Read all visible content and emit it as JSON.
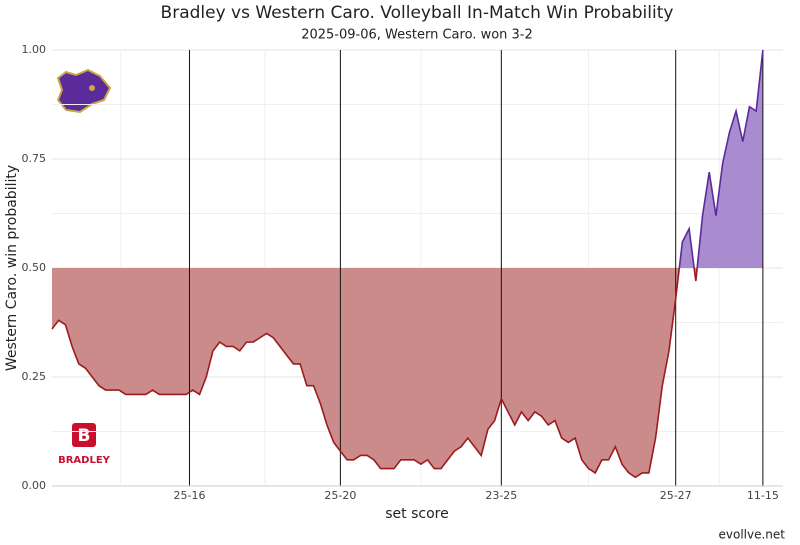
{
  "chart_data": {
    "type": "winprob",
    "title": "Bradley vs Western Caro. Volleyball In-Match Win Probability",
    "subtitle": "2025-09-06, Western Caro. won 3-2",
    "x_label": "set score",
    "y_label": "Western Caro. win probability",
    "caption": "evollve.net",
    "logo_text": "BRADLEY",
    "logo_letter": "B",
    "threshold": 0.5,
    "color_above": "#5b2a9b",
    "fill_above": "#a98bd0",
    "color_below": "#9b1b1e",
    "fill_below": "#cc8b8b",
    "x": [
      0,
      2,
      4,
      6,
      8,
      10,
      12,
      14,
      16,
      18,
      20,
      22,
      24,
      26,
      28,
      30,
      32,
      34,
      36,
      38,
      40,
      42,
      44,
      46,
      48,
      50,
      52,
      54,
      56,
      58,
      60,
      62,
      64,
      66,
      68,
      70,
      72,
      74,
      76,
      78,
      80,
      82,
      84,
      86,
      88,
      90,
      92,
      94,
      96,
      98,
      100,
      102,
      104,
      106,
      108,
      110,
      112,
      114,
      116,
      118,
      120,
      122,
      124,
      126,
      128,
      130,
      132,
      134,
      136,
      138,
      140,
      142,
      144,
      146,
      148,
      150,
      152,
      154,
      156,
      158,
      160,
      162,
      164,
      166,
      168,
      170,
      172,
      174,
      176,
      178,
      180,
      182,
      184,
      186,
      188,
      190,
      192,
      194,
      196,
      198,
      200,
      202,
      204,
      206,
      208,
      210,
      212
    ],
    "values": [
      0.36,
      0.38,
      0.37,
      0.32,
      0.28,
      0.27,
      0.25,
      0.23,
      0.22,
      0.22,
      0.22,
      0.21,
      0.21,
      0.21,
      0.21,
      0.22,
      0.21,
      0.21,
      0.21,
      0.21,
      0.21,
      0.22,
      0.21,
      0.25,
      0.31,
      0.33,
      0.32,
      0.32,
      0.31,
      0.33,
      0.33,
      0.34,
      0.35,
      0.34,
      0.32,
      0.3,
      0.28,
      0.28,
      0.23,
      0.23,
      0.19,
      0.14,
      0.1,
      0.08,
      0.06,
      0.06,
      0.07,
      0.07,
      0.06,
      0.04,
      0.04,
      0.04,
      0.06,
      0.06,
      0.06,
      0.05,
      0.06,
      0.04,
      0.04,
      0.06,
      0.08,
      0.09,
      0.11,
      0.09,
      0.07,
      0.13,
      0.15,
      0.2,
      0.17,
      0.14,
      0.17,
      0.15,
      0.17,
      0.16,
      0.14,
      0.15,
      0.11,
      0.1,
      0.11,
      0.06,
      0.04,
      0.03,
      0.06,
      0.06,
      0.09,
      0.05,
      0.03,
      0.02,
      0.03,
      0.03,
      0.11,
      0.23,
      0.31,
      0.43,
      0.56,
      0.59,
      0.47,
      0.62,
      0.72,
      0.62,
      0.74,
      0.81,
      0.86,
      0.79,
      0.87,
      0.86,
      1.0
    ],
    "xlim": [
      0,
      218
    ],
    "xticks": [
      {
        "value": 41,
        "label": "25-16"
      },
      {
        "value": 86,
        "label": "25-20"
      },
      {
        "value": 134,
        "label": "23-25"
      },
      {
        "value": 186,
        "label": "25-27"
      },
      {
        "value": 212,
        "label": "11-15"
      }
    ],
    "ylim": [
      0,
      1
    ],
    "yticks": [
      {
        "value": 0,
        "label": "0.00"
      },
      {
        "value": 0.25,
        "label": "0.25"
      },
      {
        "value": 0.5,
        "label": "0.50"
      },
      {
        "value": 0.75,
        "label": "0.75"
      },
      {
        "value": 1,
        "label": "1.00"
      }
    ],
    "grid": true
  }
}
